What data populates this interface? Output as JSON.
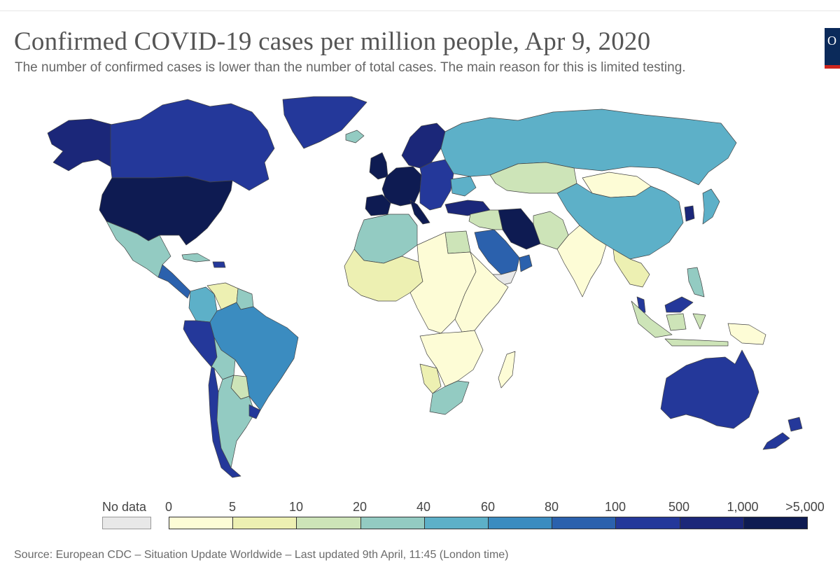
{
  "title": "Confirmed COVID-19 cases per million people, Apr 9, 2020",
  "subtitle": "The number of confirmed cases is lower than the number of total cases. The main reason for this is limited testing.",
  "logo": {
    "text": "O",
    "colors": {
      "background": "#0b2a5a",
      "accent": "#ce261e"
    }
  },
  "legend": {
    "nodata_label": "No data",
    "nodata_color": "#e8e8e8",
    "ticks": [
      "0",
      "5",
      "10",
      "20",
      "40",
      "60",
      "80",
      "100",
      "500",
      "1,000",
      ">5,000"
    ],
    "bin_colors": [
      "#fdfcd6",
      "#edf0b2",
      "#cde4b8",
      "#93cbc2",
      "#5db0c8",
      "#3b8cc0",
      "#2b61ad",
      "#24389a",
      "#1b2779",
      "#0e1b52"
    ]
  },
  "source": "Source: European CDC – Situation Update Worldwide – Last updated 9th April, 11:45 (London time)",
  "regions": [
    {
      "name": "alaska",
      "bin": 8
    },
    {
      "name": "canada",
      "bin": 7
    },
    {
      "name": "greenland",
      "bin": 7
    },
    {
      "name": "iceland",
      "bin": 3
    },
    {
      "name": "usa",
      "bin": 9
    },
    {
      "name": "mexico",
      "bin": 3
    },
    {
      "name": "central-america",
      "bin": 6
    },
    {
      "name": "cuba",
      "bin": 3
    },
    {
      "name": "dominican-republic",
      "bin": 7
    },
    {
      "name": "colombia",
      "bin": 4
    },
    {
      "name": "venezuela",
      "bin": 1
    },
    {
      "name": "guyana",
      "bin": 3
    },
    {
      "name": "ecuador-peru",
      "bin": 7
    },
    {
      "name": "brazil",
      "bin": 5
    },
    {
      "name": "bolivia",
      "bin": 3
    },
    {
      "name": "paraguay",
      "bin": 2
    },
    {
      "name": "chile",
      "bin": 7
    },
    {
      "name": "argentina",
      "bin": 3
    },
    {
      "name": "uruguay",
      "bin": 7
    },
    {
      "name": "scandinavia",
      "bin": 8
    },
    {
      "name": "uk-ireland",
      "bin": 9
    },
    {
      "name": "western-europe",
      "bin": 9
    },
    {
      "name": "iberia",
      "bin": 9
    },
    {
      "name": "italy",
      "bin": 9
    },
    {
      "name": "eastern-europe",
      "bin": 7
    },
    {
      "name": "ukraine",
      "bin": 4
    },
    {
      "name": "russia",
      "bin": 4
    },
    {
      "name": "kazakhstan",
      "bin": 2
    },
    {
      "name": "mongolia",
      "bin": 0
    },
    {
      "name": "china",
      "bin": 4
    },
    {
      "name": "south-korea",
      "bin": 8
    },
    {
      "name": "japan",
      "bin": 4
    },
    {
      "name": "turkey",
      "bin": 8
    },
    {
      "name": "iran",
      "bin": 9
    },
    {
      "name": "saudi-arabia",
      "bin": 6
    },
    {
      "name": "iraq-syria",
      "bin": 2
    },
    {
      "name": "yemen",
      "bin": -1
    },
    {
      "name": "oman-uae",
      "bin": 6
    },
    {
      "name": "afghanistan-pakistan",
      "bin": 2
    },
    {
      "name": "india",
      "bin": 0
    },
    {
      "name": "southeast-asia",
      "bin": 1
    },
    {
      "name": "malaysia",
      "bin": 7
    },
    {
      "name": "philippines",
      "bin": 3
    },
    {
      "name": "indonesia",
      "bin": 2
    },
    {
      "name": "png",
      "bin": 0
    },
    {
      "name": "australia",
      "bin": 7
    },
    {
      "name": "new-zealand",
      "bin": 7
    },
    {
      "name": "north-africa",
      "bin": 3
    },
    {
      "name": "egypt",
      "bin": 2
    },
    {
      "name": "west-africa",
      "bin": 1
    },
    {
      "name": "central-africa",
      "bin": 0
    },
    {
      "name": "east-africa",
      "bin": 0
    },
    {
      "name": "southern-africa",
      "bin": 0
    },
    {
      "name": "namibia",
      "bin": 1
    },
    {
      "name": "south-africa",
      "bin": 3
    },
    {
      "name": "madagascar",
      "bin": 0
    }
  ]
}
